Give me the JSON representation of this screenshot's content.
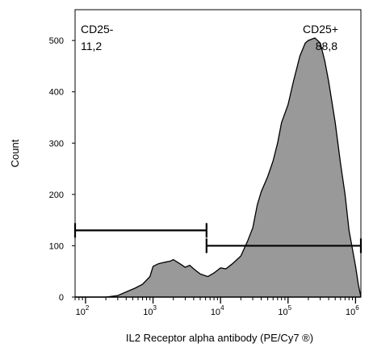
{
  "chart_data": {
    "type": "area",
    "xlabel": "IL2 Receptor alpha antibody (PE/Cy7 ®)",
    "ylabel": "Count",
    "xscale": "log",
    "xlim": [
      70,
      1200000
    ],
    "ylim": [
      0,
      560
    ],
    "x_ticks": [
      {
        "value": 100,
        "base": "10",
        "exp": "2"
      },
      {
        "value": 1000,
        "base": "10",
        "exp": "3"
      },
      {
        "value": 10000,
        "base": "10",
        "exp": "4"
      },
      {
        "value": 100000,
        "base": "10",
        "exp": "5"
      },
      {
        "value": 1000000,
        "base": "10",
        "exp": "6"
      }
    ],
    "y_ticks": [
      {
        "value": 0,
        "label": "0"
      },
      {
        "value": 100,
        "label": "100"
      },
      {
        "value": 200,
        "label": "200"
      },
      {
        "value": 300,
        "label": "300"
      },
      {
        "value": 400,
        "label": "400"
      },
      {
        "value": 500,
        "label": "500"
      }
    ],
    "fill_color": "#999999",
    "line_color": "#000000",
    "histogram": [
      [
        70,
        0
      ],
      [
        200,
        0
      ],
      [
        300,
        3
      ],
      [
        400,
        10
      ],
      [
        550,
        18
      ],
      [
        700,
        25
      ],
      [
        900,
        40
      ],
      [
        1000,
        60
      ],
      [
        1200,
        65
      ],
      [
        1500,
        68
      ],
      [
        1800,
        70
      ],
      [
        2000,
        73
      ],
      [
        2500,
        65
      ],
      [
        3000,
        58
      ],
      [
        3500,
        62
      ],
      [
        4000,
        55
      ],
      [
        5000,
        45
      ],
      [
        6500,
        40
      ],
      [
        8000,
        47
      ],
      [
        10000,
        57
      ],
      [
        12000,
        55
      ],
      [
        15000,
        65
      ],
      [
        20000,
        80
      ],
      [
        25000,
        108
      ],
      [
        30000,
        135
      ],
      [
        35000,
        180
      ],
      [
        40000,
        205
      ],
      [
        50000,
        235
      ],
      [
        60000,
        265
      ],
      [
        70000,
        300
      ],
      [
        80000,
        340
      ],
      [
        100000,
        375
      ],
      [
        120000,
        420
      ],
      [
        150000,
        470
      ],
      [
        180000,
        495
      ],
      [
        200000,
        500
      ],
      [
        250000,
        505
      ],
      [
        300000,
        495
      ],
      [
        350000,
        460
      ],
      [
        400000,
        420
      ],
      [
        500000,
        340
      ],
      [
        600000,
        260
      ],
      [
        700000,
        200
      ],
      [
        800000,
        130
      ],
      [
        1000000,
        60
      ],
      [
        1100000,
        25
      ],
      [
        1200000,
        0
      ]
    ],
    "gates": [
      {
        "name": "CD25-",
        "value": "11,2",
        "x_start": 70,
        "x_end": 6200,
        "y": 130
      },
      {
        "name": "CD25+",
        "value": "88,8",
        "x_start": 6200,
        "x_end": 1200000,
        "y": 100
      }
    ]
  }
}
